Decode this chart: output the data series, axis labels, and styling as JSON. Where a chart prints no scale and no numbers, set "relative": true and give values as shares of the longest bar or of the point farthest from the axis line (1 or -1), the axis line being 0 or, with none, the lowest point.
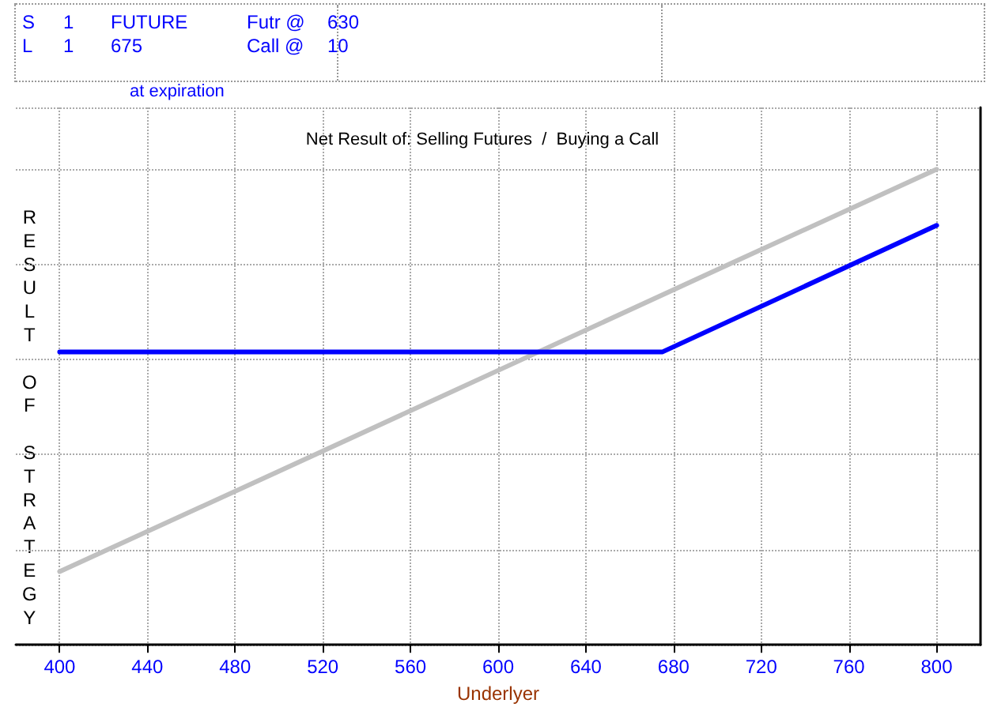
{
  "chart_data": {
    "type": "line",
    "title": "Net Result of: Selling Futures  /  Buying a Call",
    "subtitle": "at expiration",
    "xlabel": "Underlyer",
    "ylabel": "RESULT OF STRATEGY",
    "annotations": [
      "S",
      "1",
      "FUTURE",
      "Futr @",
      "630",
      "L",
      "1",
      "675",
      "Call @",
      "10"
    ],
    "relative": true,
    "xlim": [
      380,
      820
    ],
    "xticks": [
      400,
      440,
      480,
      520,
      560,
      600,
      640,
      680,
      720,
      760,
      800
    ],
    "grid": true,
    "marker": "none",
    "line_style": "solid",
    "series": [
      {
        "color": "#c0c0c0",
        "x": [
          400,
          500,
          600,
          700,
          800
        ],
        "values": [
          0.154,
          0.365,
          0.577,
          0.789,
          1
        ]
      },
      {
        "color": "#0000ff",
        "x": [
          400,
          675,
          800
        ],
        "values": [
          0.616,
          0.616,
          0.882
        ]
      }
    ]
  }
}
